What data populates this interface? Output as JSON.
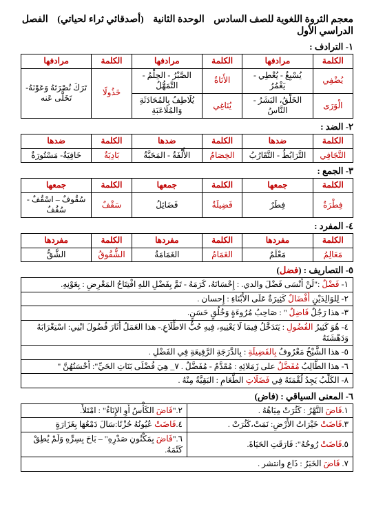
{
  "header": {
    "p1": "معجم الثروة اللغوية للصف السادس",
    "p2": "الوحدة الثانية",
    "p3": "(أصدقائي ثراء لحياتي)",
    "p4": "الفصل الدراسي الأول"
  },
  "sec1": {
    "title": "١- الترادف :",
    "h": [
      "الكلمة",
      "مرادفها",
      "الكلمة",
      "مرادفها",
      "الكلمة",
      "مرادفها"
    ],
    "r1": [
      "يُضْفِي",
      "يُسْبِغُ - يُعْطِي - يَغْمُرُ",
      "الأَنَاةُ",
      "الصَّبْرُ - الحِلْمُ - التَّمَهُّلُ",
      "خَذُولًا",
      "تَرَكَ نُصْرَتَهُ وَعَوْنَهُ- تَخَلَّى عَنه"
    ],
    "r2": [
      "الْوَرَى",
      "الخَلْقُ، البَشَرُ - النَّاسُ",
      "يُنَاغِي",
      "يُلَاطِفُ بِالمُحَادَثَةِ وَالمُلَاعَبَةِ"
    ]
  },
  "sec2": {
    "title": "٢- الضد :",
    "h": [
      "الكلمة",
      "ضدها",
      "الكلمة",
      "ضدها",
      "الكلمة",
      "ضدها"
    ],
    "r1": [
      "التَّجَافِي",
      "التَّرَابُطُ - التَّقَارُبُ",
      "الخِصَامُ",
      "الأُلْفَةُ - المَحَبَّةُ",
      "بَادِيَةٌ",
      "خَافِيَةٌ- مَسْتُورَةٌ"
    ]
  },
  "sec3": {
    "title": "٣- الجمع :",
    "h": [
      "الكلمة",
      "جمعها",
      "الكلمة",
      "جمعها",
      "الكلمة",
      "جمعها"
    ],
    "r1": [
      "فِطْرَةٌ",
      "فِطَرٌ",
      "فَضِيلَةٌ",
      "فَضَائِلُ",
      "سَقْفٌ",
      "سُقُوفٌ – اسْقُفٌ - سُقُفٌ"
    ]
  },
  "sec4": {
    "title": "٤- المفرد :",
    "h": [
      "الكلمة",
      "مفردها",
      "الكلمة",
      "مفردها",
      "الكلمة",
      "مفردها"
    ],
    "r1": [
      "مَعَالِمُ",
      "مَعْلَمٌ",
      "الغَمَامُ",
      "الغَمَامَةُ",
      "الشُّقُوقُ",
      "الشَّقُّ"
    ]
  },
  "sec5": {
    "title_a": "٥- التصاريف : (",
    "title_b": "فضل",
    "title_c": ")",
    "rows": [
      {
        "pre": "١- ",
        "w": "فَضْلٌ",
        "post": " :\"لَنْ أَنْسَى فَضْلَ والدي. : إِحْسَانَهُ، كَرَمَهُ - تَمَّ بِفَضْلِ اللهِ افْتِتَاحُ المَعْرِضِ : بِعَوْنِهِ."
      },
      {
        "pre": "٢- لِلوَالِدَيْنِ ",
        "w": "أَفْضَالٌ",
        "post": " كَثِيرَةٌ عَلَى الأَبْنَاءِ : إِحسان ."
      },
      {
        "pre": "٣- هذا رَجُلٌ ",
        "w": "فَاضِلٌ",
        "post": " \" : صَاحِبُ مُرُوءَةٍ وَخُلُقٍ حَسَنٍ."
      },
      {
        "pre": "٤- هُوَ كَثِيرُ ",
        "w": "الفُضُولِ",
        "post": " : يَتَدَخَّلُ فِيمَا لَا يَعْنِيهِ، فِيهِ حُبُّ الاطِّلَاعِ.- هذا العَمَلُ أَثَارَ فُضُولَ ابْنِي: اسْتِغْرَابَهُ وَدَهْشَتَهُ"
      },
      {
        "pre": "٥- هذا الشَّيْخُ مَعْرُوفٌ ",
        "w": "بِالفَضِيلَةِ",
        "post": " : بِالدَّرَجَةِ الرَّفِيعَةِ فِي الفَضْلِ ."
      },
      {
        "pre": "٦- هذا الطَّالِبُ ",
        "w": "مُفَضَّلٌ",
        "post": " على زَمَلائِهِ : مُقَدَّمٌ - مُفَضَّلٌ .    ٧_ هِيَ فُضْلَى بَنَاتِ الحَيِّ\": أَحْسَنُهُنَّ \""
      },
      {
        "pre": "٨- الكَلْبُ يَجِدُ لُقْمَتَهُ فِي ",
        "w": "فَضَلَاتِ",
        "post": " الطَّعَامِ : البَقِيَّةُ مِنْهُ ."
      }
    ]
  },
  "sec6": {
    "title": "٦- المعنى السياقي : (فاض)",
    "rows": [
      [
        "١.فَاضَ النَّهْرُ : كَثُرَتْ مِيَاهُهُ .",
        "٢.\"فَاضَ الكَأْسُ أَوِ الإِنَاءُ\" : امْتَلأَ."
      ],
      [
        "٣.فَاضَتْ خَيْرَاتُ الأَرْضِ: نَمَتْ،كَثُرَتْ .",
        "٤.فَاضَتْ عُيُونُهُ حُزْنًا:سَالَ دَمْعُهَا بِغَزَارَةٍ"
      ],
      [
        "٥.فَاضَتْ رُوحُهُ\": فَارَقَتِ الحَيَاةَ.",
        "٦.\"فَاضَ بِمَكْنُونِ صَدْرِهِ\" – بَاحَ بِسِرِّهِ وَلَمْ يُطِقْ كَتْمَهُ."
      ],
      [
        "٧. فَاضَ الخَبَرُ : ذَاع وانتشر .",
        ""
      ]
    ]
  }
}
